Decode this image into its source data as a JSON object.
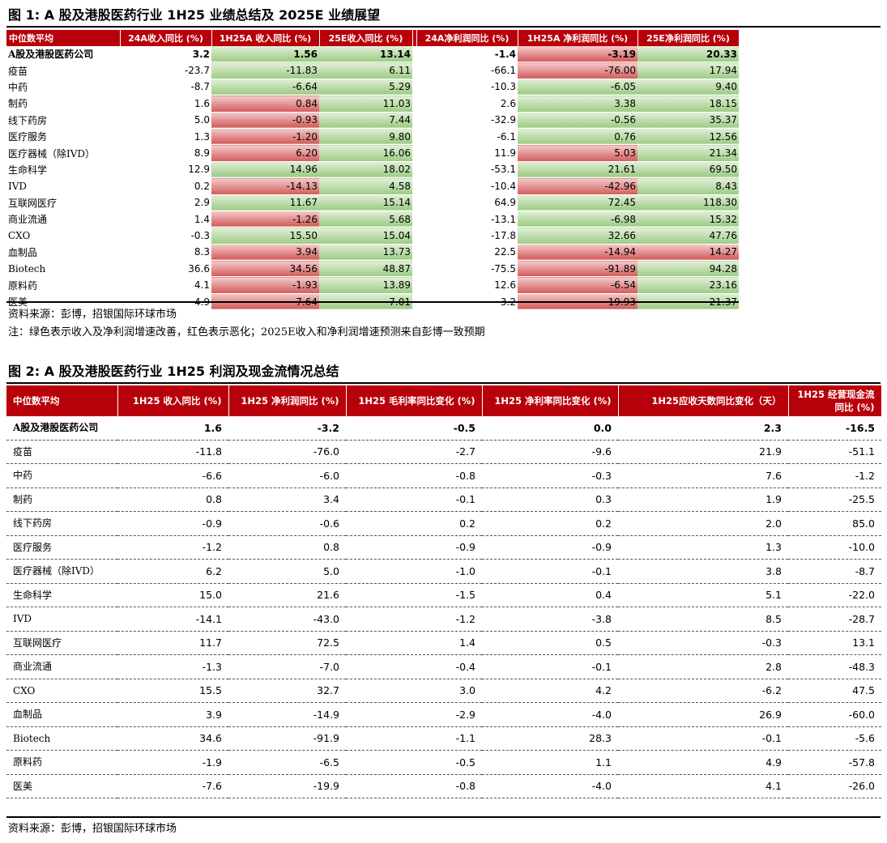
{
  "figure1": {
    "title": "图 1: A 股及港股医药行业 1H25 业绩总结及 2025E 业绩展望",
    "headers": [
      "中位数平均",
      "24A收入同比 (%)",
      "1H25A 收入同比 (%)",
      "25E收入同比 (%)",
      "24A净利润同比 (%)",
      "1H25A 净利润同比 (%)",
      "25E净利润同比 (%)"
    ],
    "colors": {
      "header": "#b8000a",
      "positive": "#9ccb84",
      "negative": "#d35a5a"
    },
    "rows": [
      {
        "name": "A股及港股医药公司",
        "bold": true,
        "v": [
          "3.2",
          "1.56",
          "13.14",
          "-1.4",
          "-3.19",
          "20.33"
        ],
        "c": [
          "",
          "pos",
          "pos",
          "",
          "neg",
          "pos"
        ]
      },
      {
        "name": "疫苗",
        "v": [
          "-23.7",
          "-11.83",
          "6.11",
          "-66.1",
          "-76.00",
          "17.94"
        ],
        "c": [
          "",
          "pos",
          "pos",
          "",
          "neg",
          "pos"
        ]
      },
      {
        "name": "中药",
        "v": [
          "-8.7",
          "-6.64",
          "5.29",
          "-10.3",
          "-6.05",
          "9.40"
        ],
        "c": [
          "",
          "pos",
          "pos",
          "",
          "pos",
          "pos"
        ]
      },
      {
        "name": "制药",
        "v": [
          "1.6",
          "0.84",
          "11.03",
          "2.6",
          "3.38",
          "18.15"
        ],
        "c": [
          "",
          "neg",
          "pos",
          "",
          "pos",
          "pos"
        ]
      },
      {
        "name": "线下药房",
        "v": [
          "5.0",
          "-0.93",
          "7.44",
          "-32.9",
          "-0.56",
          "35.37"
        ],
        "c": [
          "",
          "neg",
          "pos",
          "",
          "pos",
          "pos"
        ]
      },
      {
        "name": "医疗服务",
        "v": [
          "1.3",
          "-1.20",
          "9.80",
          "-6.1",
          "0.76",
          "12.56"
        ],
        "c": [
          "",
          "neg",
          "pos",
          "",
          "pos",
          "pos"
        ]
      },
      {
        "name": "医疗器械（除IVD）",
        "v": [
          "8.9",
          "6.20",
          "16.06",
          "11.9",
          "5.03",
          "21.34"
        ],
        "c": [
          "",
          "neg",
          "pos",
          "",
          "neg",
          "pos"
        ]
      },
      {
        "name": "生命科学",
        "v": [
          "12.9",
          "14.96",
          "18.02",
          "-53.1",
          "21.61",
          "69.50"
        ],
        "c": [
          "",
          "pos",
          "pos",
          "",
          "pos",
          "pos"
        ]
      },
      {
        "name": "IVD",
        "v": [
          "0.2",
          "-14.13",
          "4.58",
          "-10.4",
          "-42.96",
          "8.43"
        ],
        "c": [
          "",
          "neg",
          "pos",
          "",
          "neg",
          "pos"
        ]
      },
      {
        "name": "互联网医疗",
        "v": [
          "2.9",
          "11.67",
          "15.14",
          "64.9",
          "72.45",
          "118.30"
        ],
        "c": [
          "",
          "pos",
          "pos",
          "",
          "pos",
          "pos"
        ]
      },
      {
        "name": "商业流通",
        "v": [
          "1.4",
          "-1.26",
          "5.68",
          "-13.1",
          "-6.98",
          "15.32"
        ],
        "c": [
          "",
          "neg",
          "pos",
          "",
          "pos",
          "pos"
        ]
      },
      {
        "name": "CXO",
        "v": [
          "-0.3",
          "15.50",
          "15.04",
          "-17.8",
          "32.66",
          "47.76"
        ],
        "c": [
          "",
          "pos",
          "pos",
          "",
          "pos",
          "pos"
        ]
      },
      {
        "name": "血制品",
        "v": [
          "8.3",
          "3.94",
          "13.73",
          "22.5",
          "-14.94",
          "14.27"
        ],
        "c": [
          "",
          "neg",
          "pos",
          "",
          "neg",
          "neg"
        ]
      },
      {
        "name": "Biotech",
        "v": [
          "36.6",
          "34.56",
          "48.87",
          "-75.5",
          "-91.89",
          "94.28"
        ],
        "c": [
          "",
          "neg",
          "pos",
          "",
          "neg",
          "pos"
        ]
      },
      {
        "name": "原料药",
        "v": [
          "4.1",
          "-1.93",
          "13.89",
          "12.6",
          "-6.54",
          "23.16"
        ],
        "c": [
          "",
          "neg",
          "pos",
          "",
          "neg",
          "pos"
        ]
      },
      {
        "name": "医美",
        "v": [
          "4.9",
          "-7.64",
          "7.01",
          "3.2",
          "-19.93",
          "21.37"
        ],
        "c": [
          "",
          "neg",
          "pos",
          "",
          "neg",
          "pos"
        ]
      }
    ],
    "source": "资料来源：彭博，招银国际环球市场",
    "note": "注：绿色表示收入及净利润增速改善，红色表示恶化；2025E收入和净利润增速预测来自彭博一致预期"
  },
  "figure2": {
    "title": "图 2:  A 股及港股医药行业 1H25 利润及现金流情况总结",
    "headers": [
      "中位数平均",
      "1H25 收入同比 (%)",
      "1H25 净利润同比 (%)",
      "1H25 毛利率同比变化 (%)",
      "1H25 净利率同比变化 (%)",
      "1H25应收天数同比变化（天）",
      "1H25 经营现金流同比 (%)"
    ],
    "rows": [
      {
        "name": "A股及港股医药公司",
        "bold": true,
        "v": [
          "1.6",
          "-3.2",
          "-0.5",
          "0.0",
          "2.3",
          "-16.5"
        ]
      },
      {
        "name": "疫苗",
        "v": [
          "-11.8",
          "-76.0",
          "-2.7",
          "-9.6",
          "21.9",
          "-51.1"
        ]
      },
      {
        "name": "中药",
        "v": [
          "-6.6",
          "-6.0",
          "-0.8",
          "-0.3",
          "7.6",
          "-1.2"
        ]
      },
      {
        "name": "制药",
        "v": [
          "0.8",
          "3.4",
          "-0.1",
          "0.3",
          "1.9",
          "-25.5"
        ]
      },
      {
        "name": "线下药房",
        "v": [
          "-0.9",
          "-0.6",
          "0.2",
          "0.2",
          "2.0",
          "85.0"
        ]
      },
      {
        "name": "医疗服务",
        "v": [
          "-1.2",
          "0.8",
          "-0.9",
          "-0.9",
          "1.3",
          "-10.0"
        ]
      },
      {
        "name": "医疗器械（除IVD）",
        "v": [
          "6.2",
          "5.0",
          "-1.0",
          "-0.1",
          "3.8",
          "-8.7"
        ]
      },
      {
        "name": "生命科学",
        "v": [
          "15.0",
          "21.6",
          "-1.5",
          "0.4",
          "5.1",
          "-22.0"
        ]
      },
      {
        "name": "IVD",
        "v": [
          "-14.1",
          "-43.0",
          "-1.2",
          "-3.8",
          "8.5",
          "-28.7"
        ]
      },
      {
        "name": "互联网医疗",
        "v": [
          "11.7",
          "72.5",
          "1.4",
          "0.5",
          "-0.3",
          "13.1"
        ]
      },
      {
        "name": "商业流通",
        "v": [
          "-1.3",
          "-7.0",
          "-0.4",
          "-0.1",
          "2.8",
          "-48.3"
        ]
      },
      {
        "name": "CXO",
        "v": [
          "15.5",
          "32.7",
          "3.0",
          "4.2",
          "-6.2",
          "47.5"
        ]
      },
      {
        "name": "血制品",
        "v": [
          "3.9",
          "-14.9",
          "-2.9",
          "-4.0",
          "26.9",
          "-60.0"
        ]
      },
      {
        "name": "Biotech",
        "v": [
          "34.6",
          "-91.9",
          "-1.1",
          "28.3",
          "-0.1",
          "-5.6"
        ]
      },
      {
        "name": "原料药",
        "v": [
          "-1.9",
          "-6.5",
          "-0.5",
          "1.1",
          "4.9",
          "-57.8"
        ]
      },
      {
        "name": "医美",
        "v": [
          "-7.6",
          "-19.9",
          "-0.8",
          "-4.0",
          "4.1",
          "-26.0"
        ]
      }
    ],
    "source": "资料来源：彭博，招银国际环球市场"
  }
}
